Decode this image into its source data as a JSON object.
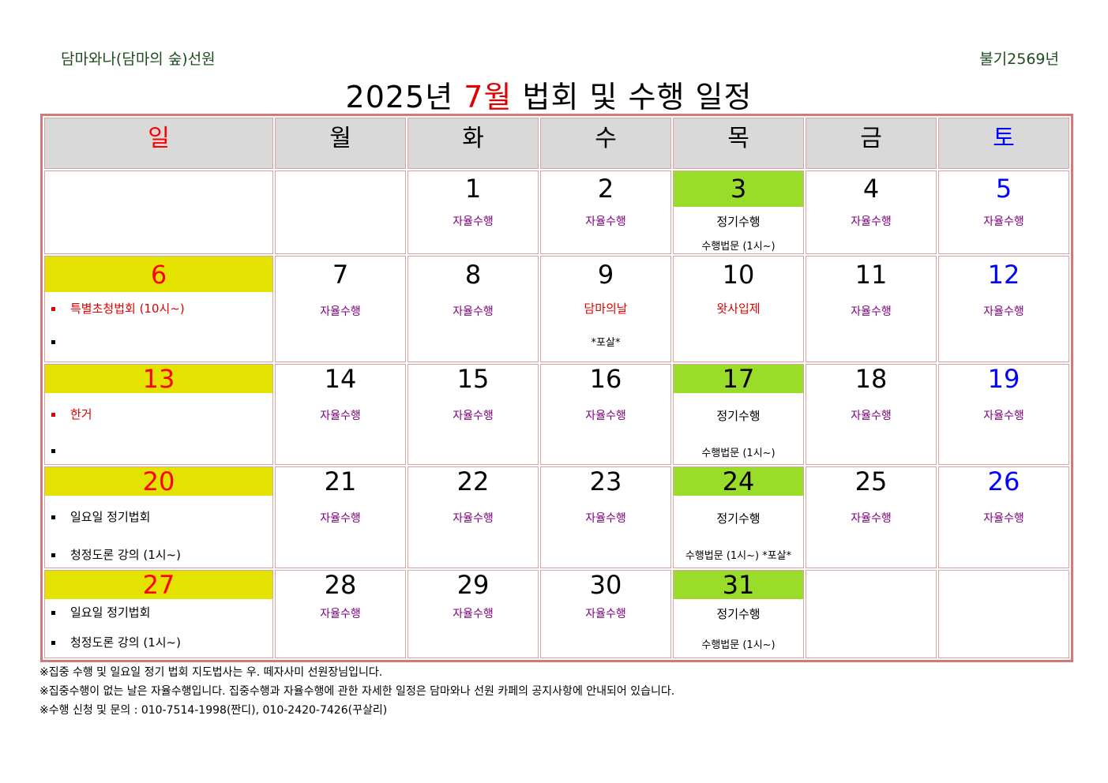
{
  "header": {
    "org": "담마와나(담마의 숲)선원",
    "era": "불기2569년",
    "title_prefix": "2025년 ",
    "title_month": "7월",
    "title_suffix": " 법회 및 수행 일정"
  },
  "weekdays": [
    "일",
    "월",
    "화",
    "수",
    "목",
    "금",
    "토"
  ],
  "events": {
    "self": "자율수행",
    "regular": "정기수행",
    "dharma": "수행법문 (1시~)",
    "dharma_posal": "수행법문 (1시~) *포살*",
    "special": "특별초청법회 (10시~)",
    "dhamma_day": "담마의날",
    "posal": "*포살*",
    "king": "왓사입제",
    "hangeo": "한거",
    "sunday": "일요일 정기법회",
    "lecture": "청정도론 강의 (1시~)"
  },
  "days": [
    "1",
    "2",
    "3",
    "4",
    "5",
    "6",
    "7",
    "8",
    "9",
    "10",
    "11",
    "12",
    "13",
    "14",
    "15",
    "16",
    "17",
    "18",
    "19",
    "20",
    "21",
    "22",
    "23",
    "24",
    "25",
    "26",
    "27",
    "28",
    "29",
    "30",
    "31"
  ],
  "notes": [
    "※집중 수행 및 일요일 정기 법회 지도법사는 우. 떼자사미 선원장님입니다.",
    "※집중수행이 없는 날은 자율수행입니다. 집중수행과 자율수행에 관한 자세한 일정은 담마와나 선원 카페의 공지사항에 안내되어 있습니다.",
    "※수행 신청 및 문의 : 010-7514-1998(짠디), 010-2420-7426(꾸살리)"
  ]
}
